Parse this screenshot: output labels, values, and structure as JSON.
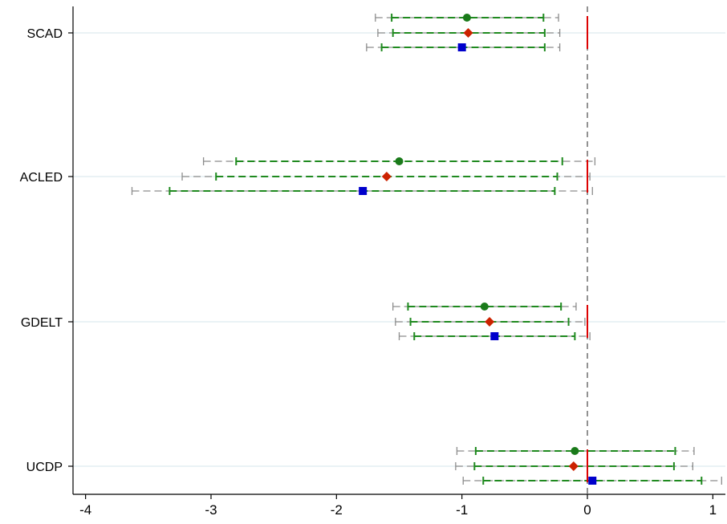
{
  "chart_data": {
    "type": "scatter",
    "title": "",
    "xlabel": "",
    "ylabel": "",
    "xlim": [
      -4.1,
      1.1
    ],
    "x_ticks": [
      -4,
      -3,
      -2,
      -1,
      0,
      1
    ],
    "x_tick_labels": [
      "-4",
      "-3",
      "-2",
      "-1",
      "0",
      "1"
    ],
    "categories": [
      "SCAD",
      "ACLED",
      "GDELT",
      "UCDP"
    ],
    "reference_line": {
      "x": 0,
      "style": "dashed",
      "color": "#6e6e6e"
    },
    "grid": {
      "horizontal": true,
      "vertical": false
    },
    "legend": "none",
    "colors": {
      "inner_ci": "#1f8a1f",
      "outer_ci": "#8c8c8c",
      "circle": "#1a7a1a",
      "diamond": "#cc2200",
      "square": "#0000cc",
      "zero_marker": "#dd0000"
    },
    "groups": [
      {
        "category": "SCAD",
        "estimates": [
          {
            "marker": "circle",
            "value": -0.96,
            "ci_inner": [
              -1.56,
              -0.35
            ],
            "ci_outer": [
              -1.69,
              -0.23
            ]
          },
          {
            "marker": "diamond",
            "value": -0.95,
            "ci_inner": [
              -1.55,
              -0.34
            ],
            "ci_outer": [
              -1.67,
              -0.22
            ]
          },
          {
            "marker": "square",
            "value": -1.0,
            "ci_inner": [
              -1.64,
              -0.34
            ],
            "ci_outer": [
              -1.76,
              -0.22
            ]
          }
        ]
      },
      {
        "category": "ACLED",
        "estimates": [
          {
            "marker": "circle",
            "value": -1.5,
            "ci_inner": [
              -2.8,
              -0.2
            ],
            "ci_outer": [
              -3.06,
              0.06
            ]
          },
          {
            "marker": "diamond",
            "value": -1.6,
            "ci_inner": [
              -2.96,
              -0.24
            ],
            "ci_outer": [
              -3.23,
              0.02
            ]
          },
          {
            "marker": "square",
            "value": -1.79,
            "ci_inner": [
              -3.33,
              -0.26
            ],
            "ci_outer": [
              -3.63,
              0.04
            ]
          }
        ]
      },
      {
        "category": "GDELT",
        "estimates": [
          {
            "marker": "circle",
            "value": -0.82,
            "ci_inner": [
              -1.43,
              -0.21
            ],
            "ci_outer": [
              -1.55,
              -0.09
            ]
          },
          {
            "marker": "diamond",
            "value": -0.78,
            "ci_inner": [
              -1.41,
              -0.15
            ],
            "ci_outer": [
              -1.53,
              -0.02
            ]
          },
          {
            "marker": "square",
            "value": -0.74,
            "ci_inner": [
              -1.38,
              -0.1
            ],
            "ci_outer": [
              -1.5,
              0.02
            ]
          }
        ]
      },
      {
        "category": "UCDP",
        "estimates": [
          {
            "marker": "circle",
            "value": -0.1,
            "ci_inner": [
              -0.89,
              0.7
            ],
            "ci_outer": [
              -1.04,
              0.85
            ]
          },
          {
            "marker": "diamond",
            "value": -0.11,
            "ci_inner": [
              -0.9,
              0.69
            ],
            "ci_outer": [
              -1.05,
              0.84
            ]
          },
          {
            "marker": "square",
            "value": 0.04,
            "ci_inner": [
              -0.83,
              0.91
            ],
            "ci_outer": [
              -0.99,
              1.07
            ]
          }
        ]
      }
    ]
  }
}
